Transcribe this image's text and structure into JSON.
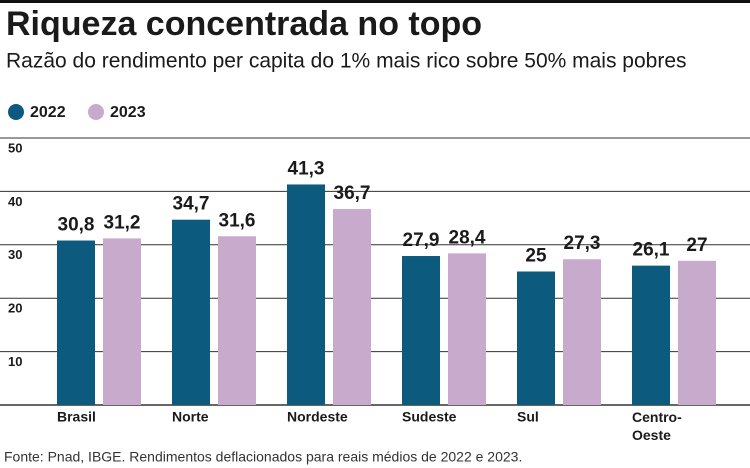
{
  "chart_data": {
    "type": "bar",
    "title": "Riqueza concentrada no topo",
    "subtitle": "Razão do rendimento per capita do 1% mais rico sobre 50% mais pobres",
    "categories": [
      "Brasil",
      "Norte",
      "Nordeste",
      "Sudeste",
      "Sul",
      "Centro-Oeste"
    ],
    "series": [
      {
        "name": "2022",
        "color": "#0d5a7f",
        "values": [
          30.8,
          34.7,
          41.3,
          27.9,
          25,
          26.1
        ],
        "value_labels": [
          "30,8",
          "34,7",
          "41,3",
          "27,9",
          "25",
          "26,1"
        ]
      },
      {
        "name": "2023",
        "color": "#c8abcc",
        "values": [
          31.2,
          31.6,
          36.7,
          28.4,
          27.3,
          27
        ],
        "value_labels": [
          "31,2",
          "31,6",
          "36,7",
          "28,4",
          "27,3",
          "27"
        ]
      }
    ],
    "ylim": [
      0,
      50
    ],
    "yticks": [
      10,
      20,
      30,
      40,
      50
    ],
    "grid": true,
    "source": "Fonte: Pnad, IBGE. Rendimentos deflacionados para reais médios de 2022 e 2023."
  }
}
